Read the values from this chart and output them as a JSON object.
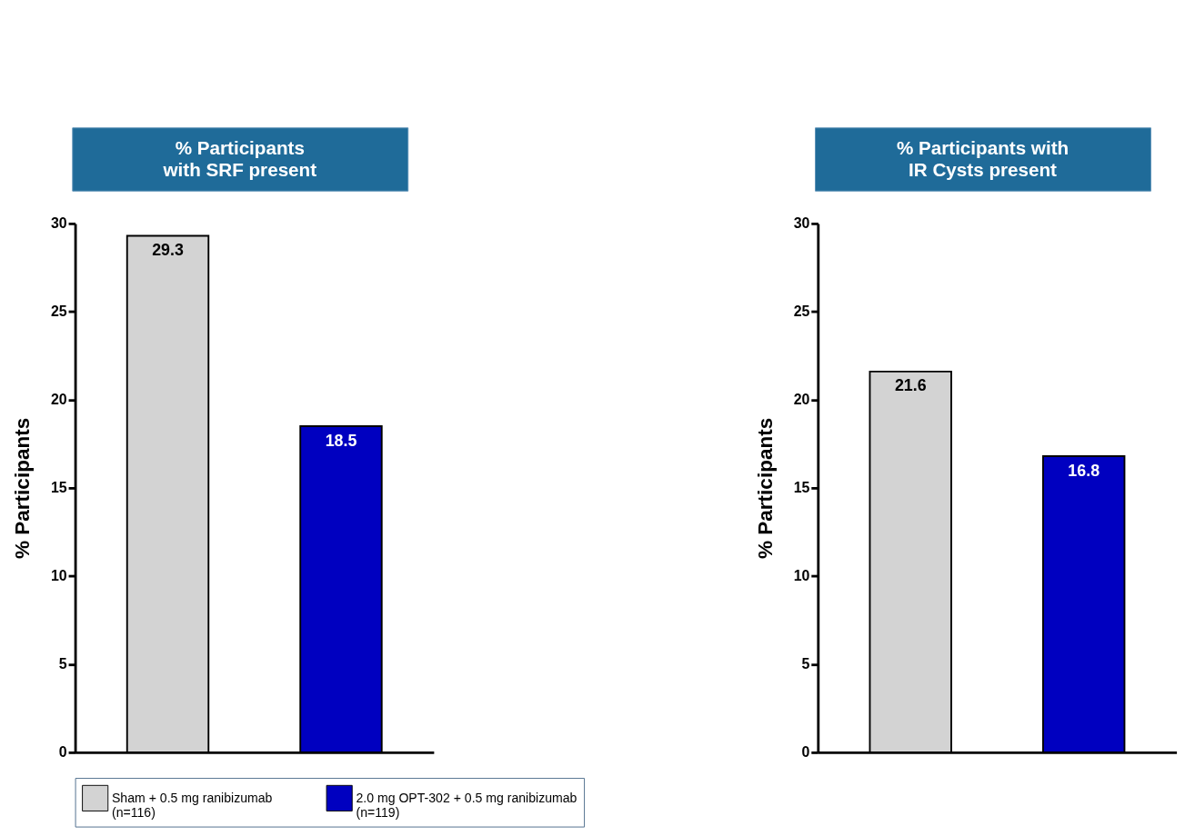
{
  "chart_data": [
    {
      "type": "bar",
      "title": "% Participants\nwith SRF present",
      "ylabel": "% Participants",
      "categories": [
        null,
        null
      ],
      "series": [
        {
          "name": "Sham + 0.5 mg ranibizumab\n(n=116)",
          "color": "#d3d3d3",
          "values": [
            29.3,
            null
          ]
        },
        {
          "name": "2.0 mg OPT-302 + 0.5 mg ranibizumab\n(n=119)",
          "color": "#0000c0",
          "values": [
            null,
            18.5
          ]
        }
      ],
      "ylim": [
        0,
        30
      ],
      "yticks": [
        0,
        5,
        10,
        15,
        20,
        25,
        30
      ],
      "data_labels": true,
      "grid": false,
      "legend": "bottom"
    },
    {
      "type": "bar",
      "title": "% Participants with\nIR Cysts present",
      "ylabel": "% Participants",
      "categories": [
        null,
        null
      ],
      "series": [
        {
          "color": "#d3d3d3",
          "values": [
            21.6,
            null
          ]
        },
        {
          "color": "#0000c0",
          "values": [
            null,
            16.8
          ]
        }
      ],
      "ylim": [
        0,
        30
      ],
      "yticks": [
        0,
        5,
        10,
        15,
        20,
        25,
        30
      ],
      "data_labels": true,
      "grid": false
    }
  ]
}
